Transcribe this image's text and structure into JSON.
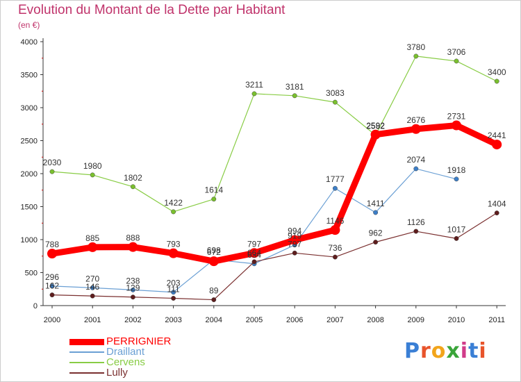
{
  "title": "Evolution du Montant de la Dette par Habitant",
  "subtitle": "(en €)",
  "logo": {
    "text": "Proxiti",
    "colors": [
      "#3a7fd5",
      "#e8542b",
      "#f2a51c",
      "#3aa53a",
      "#d13b8a",
      "#3a7fd5",
      "#e8542b"
    ]
  },
  "chart_data": {
    "type": "line",
    "x": [
      "2000",
      "2001",
      "2002",
      "2003",
      "2004",
      "2005",
      "2006",
      "2007",
      "2008",
      "2009",
      "2010",
      "2011"
    ],
    "ylim": [
      0,
      4000
    ],
    "yticks": [
      "0",
      "500",
      "1000",
      "1500",
      "2000",
      "2500",
      "3000",
      "3500",
      "4000"
    ],
    "grid": false,
    "legend": "bottom-left",
    "series": [
      {
        "name": "Cervens",
        "color": "#88cc44",
        "marker": "#7ac02e",
        "width": 1.2,
        "values": [
          2030,
          1980,
          1802,
          1422,
          1614,
          3211,
          3181,
          3083,
          2582,
          3780,
          3706,
          3400
        ],
        "labels": [
          "2030",
          "1980",
          "1802",
          "1422",
          "1614",
          "3211",
          "3181",
          "3083",
          "2582",
          "3780",
          "3706",
          "3400"
        ]
      },
      {
        "name": "Draillant",
        "color": "#6a9fd4",
        "marker": "#3d7fc8",
        "width": 1.2,
        "values": [
          296,
          270,
          238,
          203,
          698,
          634,
          919,
          1777,
          1411,
          2074,
          1918,
          null
        ],
        "labels": [
          "296",
          "270",
          "238",
          "203",
          "698",
          "634",
          "919",
          "1777",
          "1411",
          "2074",
          "1918",
          ""
        ]
      },
      {
        "name": "Lully",
        "color": "#7a2f2f",
        "marker": "#5e1d1d",
        "width": 1.2,
        "values": [
          162,
          146,
          129,
          111,
          89,
          664,
          797,
          736,
          962,
          1126,
          1017,
          1404
        ],
        "labels": [
          "162",
          "146",
          "129",
          "111",
          "89",
          "664",
          "797",
          "736",
          "962",
          "1126",
          "1017",
          "1404"
        ]
      },
      {
        "name": "PERRIGNIER",
        "color": "#ff0000",
        "marker": "#ff0000",
        "width": 9,
        "values": [
          788,
          885,
          888,
          793,
          672,
          797,
          994,
          1146,
          2592,
          2676,
          2731,
          2441
        ],
        "labels": [
          "788",
          "885",
          "888",
          "793",
          "672",
          "797",
          "994",
          "1146",
          "2592",
          "2676",
          "2731",
          "2441"
        ]
      }
    ],
    "legend_order": [
      "PERRIGNIER",
      "Draillant",
      "Cervens",
      "Lully"
    ]
  }
}
